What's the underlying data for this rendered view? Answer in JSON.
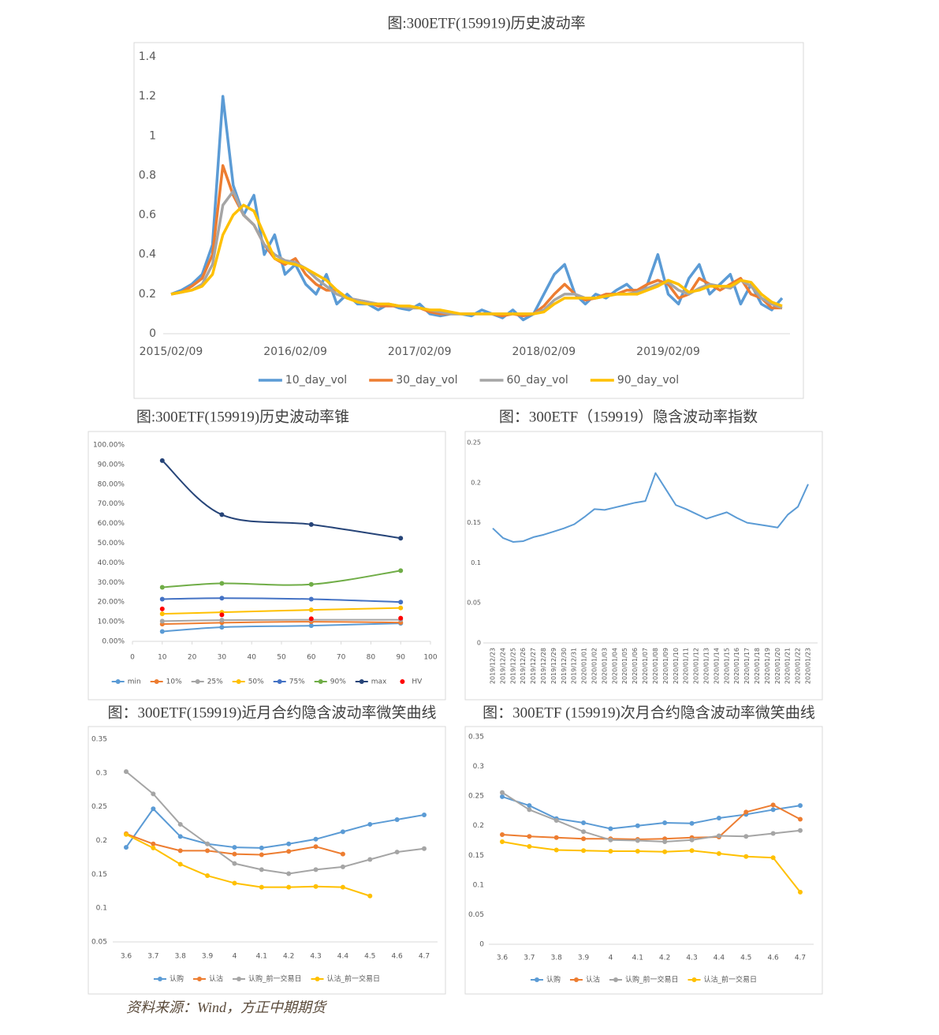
{
  "chart_data": [
    {
      "type": "line",
      "title": "图:300ETF(159919)历史波动率",
      "categories": [
        "2015/02/09",
        null,
        null,
        null,
        null,
        null,
        null,
        null,
        null,
        null,
        null,
        null,
        "2016/02/09",
        null,
        null,
        null,
        null,
        null,
        null,
        null,
        null,
        null,
        null,
        null,
        "2017/02/09",
        null,
        null,
        null,
        null,
        null,
        null,
        null,
        null,
        null,
        null,
        null,
        "2018/02/09",
        null,
        null,
        null,
        null,
        null,
        null,
        null,
        null,
        null,
        null,
        null,
        "2019/02/09",
        null,
        null,
        null,
        null,
        null,
        null,
        null,
        null,
        null,
        null,
        null
      ],
      "ylim": [
        0,
        1.4
      ],
      "yticks": [
        0,
        0.2,
        0.4,
        0.6,
        0.8,
        1,
        1.2,
        1.4
      ],
      "grid": false,
      "markers": false,
      "legend": "bottom",
      "series": [
        {
          "name": "10_day_vol",
          "color": "#5b9bd5",
          "values": [
            0.2,
            0.22,
            0.25,
            0.3,
            0.45,
            1.2,
            0.75,
            0.6,
            0.7,
            0.4,
            0.5,
            0.3,
            0.35,
            0.25,
            0.2,
            0.3,
            0.15,
            0.2,
            0.15,
            0.15,
            0.12,
            0.15,
            0.13,
            0.12,
            0.15,
            0.1,
            0.09,
            0.1,
            0.1,
            0.09,
            0.12,
            0.1,
            0.08,
            0.12,
            0.07,
            0.1,
            0.2,
            0.3,
            0.35,
            0.2,
            0.15,
            0.2,
            0.18,
            0.22,
            0.25,
            0.2,
            0.25,
            0.4,
            0.2,
            0.15,
            0.28,
            0.35,
            0.2,
            0.25,
            0.3,
            0.15,
            0.25,
            0.15,
            0.12,
            0.18
          ]
        },
        {
          "name": "30_day_vol",
          "color": "#ed7d31",
          "values": [
            0.2,
            0.21,
            0.24,
            0.28,
            0.4,
            0.85,
            0.7,
            0.6,
            0.55,
            0.45,
            0.38,
            0.35,
            0.38,
            0.3,
            0.25,
            0.22,
            0.22,
            0.18,
            0.17,
            0.16,
            0.14,
            0.14,
            0.14,
            0.13,
            0.13,
            0.11,
            0.1,
            0.1,
            0.1,
            0.1,
            0.1,
            0.1,
            0.09,
            0.1,
            0.09,
            0.1,
            0.14,
            0.2,
            0.25,
            0.2,
            0.17,
            0.18,
            0.2,
            0.2,
            0.22,
            0.22,
            0.25,
            0.27,
            0.25,
            0.18,
            0.2,
            0.28,
            0.25,
            0.22,
            0.25,
            0.28,
            0.2,
            0.18,
            0.13,
            0.13
          ]
        },
        {
          "name": "60_day_vol",
          "color": "#a5a5a5",
          "values": [
            0.2,
            0.21,
            0.22,
            0.25,
            0.35,
            0.65,
            0.72,
            0.6,
            0.55,
            0.45,
            0.4,
            0.37,
            0.36,
            0.33,
            0.28,
            0.24,
            0.2,
            0.18,
            0.17,
            0.16,
            0.15,
            0.15,
            0.14,
            0.13,
            0.13,
            0.12,
            0.11,
            0.1,
            0.1,
            0.1,
            0.1,
            0.1,
            0.1,
            0.1,
            0.1,
            0.1,
            0.12,
            0.17,
            0.2,
            0.2,
            0.18,
            0.18,
            0.19,
            0.2,
            0.2,
            0.21,
            0.23,
            0.25,
            0.26,
            0.22,
            0.2,
            0.23,
            0.25,
            0.24,
            0.23,
            0.27,
            0.24,
            0.18,
            0.15,
            0.13
          ]
        },
        {
          "name": "90_day_vol",
          "color": "#ffc000",
          "values": [
            0.2,
            0.21,
            0.22,
            0.24,
            0.3,
            0.5,
            0.6,
            0.65,
            0.62,
            0.5,
            0.38,
            0.36,
            0.35,
            0.33,
            0.3,
            0.27,
            0.22,
            0.18,
            0.16,
            0.15,
            0.15,
            0.15,
            0.14,
            0.14,
            0.13,
            0.12,
            0.12,
            0.11,
            0.1,
            0.1,
            0.1,
            0.1,
            0.1,
            0.1,
            0.1,
            0.1,
            0.11,
            0.15,
            0.18,
            0.18,
            0.18,
            0.18,
            0.19,
            0.2,
            0.2,
            0.2,
            0.22,
            0.24,
            0.27,
            0.25,
            0.21,
            0.22,
            0.24,
            0.24,
            0.24,
            0.27,
            0.26,
            0.2,
            0.16,
            0.14
          ]
        }
      ]
    },
    {
      "type": "line",
      "title": "图:300ETF(159919)历史波动率锥",
      "x": [
        10,
        30,
        60,
        90
      ],
      "xlim": [
        0,
        100
      ],
      "xticks": [
        0,
        10,
        20,
        30,
        40,
        50,
        60,
        70,
        80,
        90,
        100
      ],
      "ylim": [
        0,
        100
      ],
      "yticks": [
        {
          "value": 0,
          "label": "0.00%"
        },
        {
          "value": 10,
          "label": "10.00%"
        },
        {
          "value": 20,
          "label": "20.00%"
        },
        {
          "value": 30,
          "label": "30.00%"
        },
        {
          "value": 40,
          "label": "40.00%"
        },
        {
          "value": 50,
          "label": "50.00%"
        },
        {
          "value": 60,
          "label": "60.00%"
        },
        {
          "value": 70,
          "label": "70.00%"
        },
        {
          "value": 80,
          "label": "80.00%"
        },
        {
          "value": 90,
          "label": "90.00%"
        },
        {
          "value": 100,
          "label": "100.00%"
        }
      ],
      "grid": false,
      "markers": true,
      "smooth": true,
      "legend": "bottom",
      "series": [
        {
          "name": "min",
          "color": "#5b9bd5",
          "values": [
            5,
            7.2,
            8,
            9.2
          ]
        },
        {
          "name": "10%",
          "color": "#ed7d31",
          "values": [
            8.8,
            9.5,
            10,
            9.6
          ]
        },
        {
          "name": "25%",
          "color": "#a5a5a5",
          "values": [
            10.3,
            10.8,
            11,
            11
          ]
        },
        {
          "name": "50%",
          "color": "#ffc000",
          "values": [
            14,
            14.8,
            16,
            17
          ]
        },
        {
          "name": "75%",
          "color": "#4472c4",
          "values": [
            21.5,
            22,
            21.5,
            20
          ]
        },
        {
          "name": "90%",
          "color": "#70ad47",
          "values": [
            27.5,
            29.5,
            29,
            36
          ]
        },
        {
          "name": "max",
          "color": "#264478",
          "values": [
            92,
            64.5,
            59.5,
            52.5
          ]
        },
        {
          "name": "HV",
          "color": "#ff0000",
          "line": false,
          "values": [
            16.5,
            13.5,
            11.5,
            11.8
          ]
        }
      ]
    },
    {
      "type": "line",
      "title": "图：300ETF（159919）隐含波动率指数",
      "categories": [
        "2019/12/23",
        "2019/12/24",
        "2019/12/25",
        "2019/12/26",
        "2019/12/27",
        "2019/12/28",
        "2019/12/29",
        "2019/12/30",
        "2019/12/31",
        "2020/01/01",
        "2020/01/02",
        "2020/01/03",
        "2020/01/04",
        "2020/01/05",
        "2020/01/06",
        "2020/01/07",
        "2020/01/08",
        "2020/01/09",
        "2020/01/10",
        "2020/01/11",
        "2020/01/12",
        "2020/01/13",
        "2020/01/14",
        "2020/01/15",
        "2020/01/16",
        "2020/01/17",
        "2020/01/18",
        "2020/01/19",
        "2020/01/20",
        "2020/01/21",
        "2020/01/22",
        "2020/01/23"
      ],
      "ylim": [
        0,
        0.25
      ],
      "yticks": [
        0,
        0.05,
        0.1,
        0.15,
        0.2,
        0.25
      ],
      "grid": false,
      "markers": false,
      "rotate_x_labels": true,
      "series": [
        {
          "color": "#5b9bd5",
          "values": [
            0.143,
            0.131,
            0.126,
            0.127,
            0.132,
            0.135,
            0.139,
            0.143,
            0.148,
            0.157,
            0.167,
            0.166,
            0.169,
            0.172,
            0.175,
            0.177,
            0.212,
            0.192,
            0.172,
            0.167,
            0.161,
            0.155,
            0.159,
            0.163,
            0.156,
            0.15,
            0.148,
            0.146,
            0.144,
            0.16,
            0.17,
            0.198
          ]
        }
      ]
    },
    {
      "type": "line",
      "title": "图：300ETF(159919)近月合约隐含波动率微笑曲线",
      "categories": [
        "3.6",
        "3.7",
        "3.8",
        "3.9",
        "4",
        "4.1",
        "4.2",
        "4.3",
        "4.4",
        "4.5",
        "4.6",
        "4.7"
      ],
      "ylim": [
        0.05,
        0.35
      ],
      "yticks": [
        0.05,
        0.1,
        0.15,
        0.2,
        0.25,
        0.3,
        0.35
      ],
      "grid": false,
      "markers": true,
      "legend": "bottom",
      "series": [
        {
          "name": "认购",
          "color": "#5b9bd5",
          "values": [
            0.19,
            0.247,
            0.206,
            0.195,
            0.19,
            0.189,
            0.195,
            0.202,
            0.213,
            0.224,
            0.231,
            0.238
          ]
        },
        {
          "name": "认沽",
          "color": "#ed7d31",
          "values": [
            0.21,
            0.195,
            0.185,
            0.185,
            0.18,
            0.179,
            0.184,
            0.191,
            0.18,
            null,
            null,
            null
          ]
        },
        {
          "name": "认购_前一交易日",
          "color": "#a5a5a5",
          "values": [
            0.302,
            0.269,
            0.224,
            0.195,
            0.166,
            0.157,
            0.151,
            0.157,
            0.161,
            0.172,
            0.183,
            0.188
          ]
        },
        {
          "name": "认沽_前一交易日",
          "color": "#ffc000",
          "values": [
            0.209,
            0.189,
            0.165,
            0.148,
            0.137,
            0.131,
            0.131,
            0.132,
            0.131,
            0.118,
            null,
            null
          ]
        }
      ]
    },
    {
      "type": "line",
      "title": "图：300ETF (159919)次月合约隐含波动率微笑曲线",
      "categories": [
        "3.6",
        "3.7",
        "3.8",
        "3.9",
        "4",
        "4.1",
        "4.2",
        "4.3",
        "4.4",
        "4.5",
        "4.6",
        "4.7"
      ],
      "ylim": [
        0,
        0.35
      ],
      "yticks": [
        0,
        0.05,
        0.1,
        0.15,
        0.2,
        0.25,
        0.3,
        0.35
      ],
      "grid": false,
      "markers": true,
      "legend": "bottom",
      "series": [
        {
          "name": "认购",
          "color": "#5b9bd5",
          "values": [
            0.249,
            0.234,
            0.212,
            0.205,
            0.195,
            0.2,
            0.205,
            0.204,
            0.213,
            0.219,
            0.227,
            0.234
          ]
        },
        {
          "name": "认沽",
          "color": "#ed7d31",
          "values": [
            0.185,
            0.182,
            0.18,
            0.178,
            0.178,
            0.177,
            0.178,
            0.18,
            0.181,
            0.223,
            0.235,
            0.211
          ]
        },
        {
          "name": "认购_前一交易日",
          "color": "#a5a5a5",
          "values": [
            0.256,
            0.227,
            0.209,
            0.19,
            0.176,
            0.175,
            0.173,
            0.176,
            0.183,
            0.182,
            0.187,
            0.192
          ]
        },
        {
          "name": "认沽_前一交易日",
          "color": "#ffc000",
          "values": [
            0.173,
            0.165,
            0.159,
            0.158,
            0.157,
            0.157,
            0.156,
            0.158,
            0.153,
            0.148,
            0.146,
            0.088
          ]
        }
      ]
    }
  ],
  "source": "资料来源：Wind，方正中期期货"
}
